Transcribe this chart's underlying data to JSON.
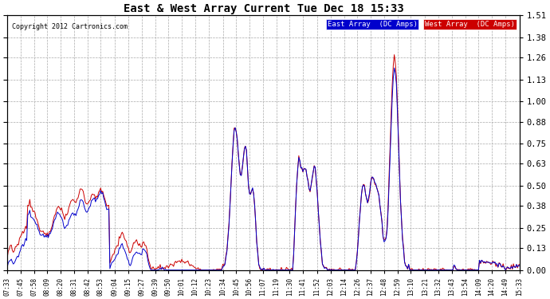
{
  "title": "East & West Array Current Tue Dec 18 15:33",
  "copyright": "Copyright 2012 Cartronics.com",
  "legend_east": "East Array  (DC Amps)",
  "legend_west": "West Array  (DC Amps)",
  "east_color": "#0000cc",
  "west_color": "#cc0000",
  "east_bg": "#0000cc",
  "west_bg": "#cc0000",
  "background_color": "#ffffff",
  "grid_color": "#aaaaaa",
  "ylim": [
    0.0,
    1.51
  ],
  "yticks": [
    0.0,
    0.13,
    0.25,
    0.38,
    0.5,
    0.63,
    0.75,
    0.88,
    1.0,
    1.13,
    1.26,
    1.38,
    1.51
  ],
  "xtick_labels": [
    "07:33",
    "07:45",
    "07:58",
    "08:09",
    "08:20",
    "08:31",
    "08:42",
    "08:53",
    "09:04",
    "09:15",
    "09:27",
    "09:39",
    "09:50",
    "10:01",
    "10:12",
    "10:23",
    "10:34",
    "10:45",
    "10:56",
    "11:07",
    "11:19",
    "11:30",
    "11:41",
    "11:52",
    "12:03",
    "12:14",
    "12:26",
    "12:37",
    "12:48",
    "12:59",
    "13:10",
    "13:21",
    "13:32",
    "13:43",
    "13:54",
    "14:09",
    "14:20",
    "14:49",
    "15:33"
  ]
}
